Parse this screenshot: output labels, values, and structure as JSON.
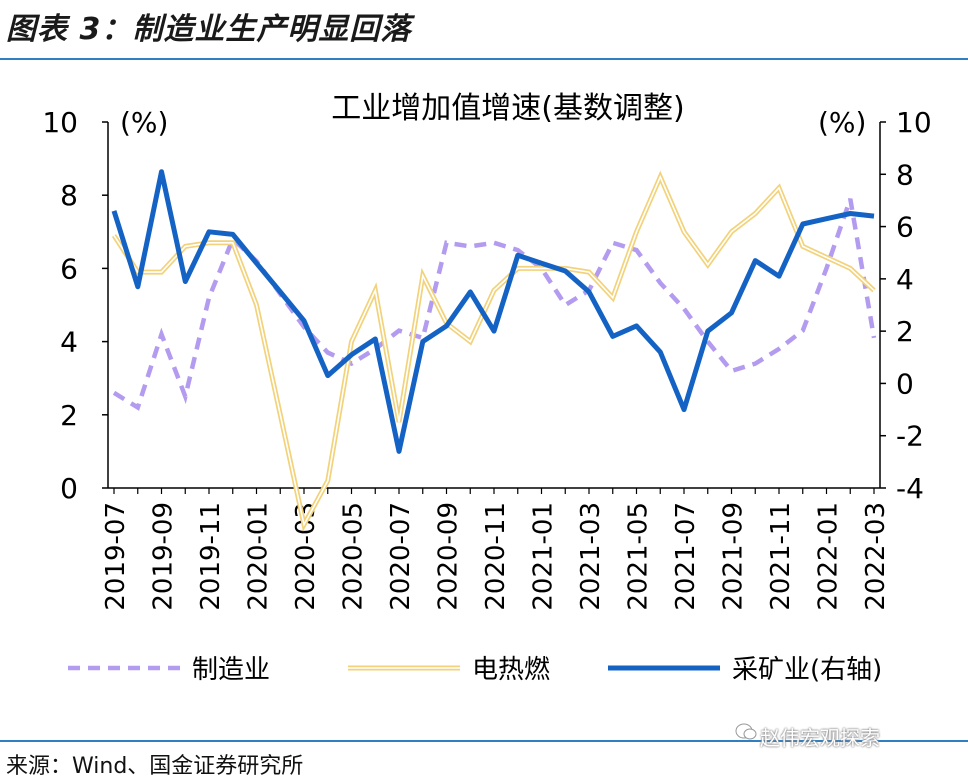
{
  "figure_title": "图表 3：制造业生产明显回落",
  "source": "来源：Wind、国金证券研究所",
  "watermark": "赵伟宏观探索",
  "colors": {
    "manufacturing": "#b39bf0",
    "utilities": "#f2d27a",
    "mining": "#1463c4",
    "rule": "#2f7fc1"
  },
  "chart_data": {
    "type": "line",
    "title": "工业增加值增速(基数调整)",
    "ylabel_left": "(%)",
    "ylabel_right": "(%)",
    "ylim_left": [
      0,
      10
    ],
    "ylim_right": [
      -4,
      10
    ],
    "yticks_left": [
      "0",
      "2",
      "4",
      "6",
      "8",
      "10"
    ],
    "yticks_right": [
      "-4",
      "-2",
      "0",
      "2",
      "4",
      "6",
      "8",
      "10"
    ],
    "x": [
      "2019-07",
      "2019-08",
      "2019-09",
      "2019-10",
      "2019-11",
      "2019-12",
      "2020-01",
      "2020-02",
      "2020-03",
      "2020-04",
      "2020-05",
      "2020-06",
      "2020-07",
      "2020-08",
      "2020-09",
      "2020-10",
      "2020-11",
      "2020-12",
      "2021-01",
      "2021-02",
      "2021-03",
      "2021-04",
      "2021-05",
      "2021-06",
      "2021-07",
      "2021-08",
      "2021-09",
      "2021-10",
      "2021-11",
      "2021-12",
      "2022-01",
      "2022-02",
      "2022-03"
    ],
    "xtick_labels": [
      "2019-07",
      "2019-09",
      "2019-11",
      "2020-01",
      "2020-03",
      "2020-05",
      "2020-07",
      "2020-09",
      "2020-11",
      "2021-01",
      "2021-03",
      "2021-05",
      "2021-07",
      "2021-09",
      "2021-11",
      "2022-01",
      "2022-03"
    ],
    "series": [
      {
        "name": "制造业",
        "axis": "left",
        "style": "dashed",
        "values": [
          2.6,
          2.2,
          4.2,
          2.5,
          5.2,
          6.8,
          6.2,
          5.3,
          4.4,
          3.7,
          3.4,
          3.8,
          4.3,
          4.1,
          6.7,
          6.6,
          6.7,
          6.5,
          6.0,
          5.0,
          5.4,
          6.7,
          6.5,
          5.6,
          4.9,
          4.0,
          3.2,
          3.4,
          3.8,
          4.3,
          6.0,
          7.9,
          4.1
        ]
      },
      {
        "name": "电热燃",
        "axis": "left",
        "style": "double",
        "values": [
          6.9,
          5.9,
          5.9,
          6.6,
          6.7,
          6.7,
          5.0,
          2.0,
          -1.0,
          0.2,
          4.0,
          5.4,
          1.8,
          5.8,
          4.5,
          4.0,
          5.4,
          6.0,
          6.0,
          6.0,
          5.9,
          5.2,
          7.0,
          8.5,
          7.0,
          6.1,
          7.0,
          7.5,
          8.2,
          6.6,
          6.3,
          6.0,
          5.4
        ]
      },
      {
        "name": "采矿业(右轴)",
        "axis": "right",
        "style": "solid",
        "values": [
          6.6,
          3.7,
          8.1,
          3.9,
          5.8,
          5.7,
          4.6,
          3.5,
          2.4,
          0.3,
          1.1,
          1.7,
          -2.6,
          1.6,
          2.2,
          3.5,
          2.0,
          4.9,
          4.6,
          4.3,
          3.5,
          1.8,
          2.2,
          1.2,
          -1.0,
          2.0,
          2.7,
          4.7,
          4.1,
          6.1,
          6.3,
          6.5,
          6.4
        ]
      }
    ],
    "legend": {
      "placement": "bottom",
      "items": [
        "制造业",
        "电热燃",
        "采矿业(右轴)"
      ]
    },
    "grid": false
  }
}
